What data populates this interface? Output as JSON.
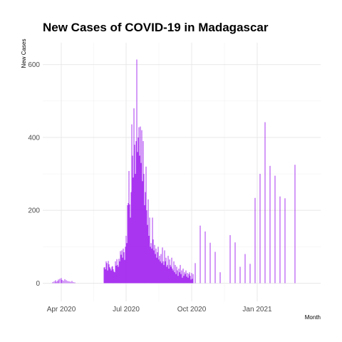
{
  "chart_data": {
    "type": "bar",
    "title": "New Cases of COVID-19 in Madagascar",
    "xlabel": "Month",
    "ylabel": "New Cases",
    "ylim": [
      -50,
      660
    ],
    "xlim": [
      "2020-03-06",
      "2021-03-31"
    ],
    "y_ticks": [
      0,
      200,
      400,
      600
    ],
    "x_ticks": [
      {
        "date": "2020-04-01",
        "label": "Apr 2020"
      },
      {
        "date": "2020-07-01",
        "label": "Jul 2020"
      },
      {
        "date": "2020-10-01",
        "label": "Oct 2020"
      },
      {
        "date": "2021-01-01",
        "label": "Jan 2021"
      }
    ],
    "grid": true,
    "legend": "none",
    "bar_color": "#a020f0",
    "points": [
      [
        "2020-03-20",
        3
      ],
      [
        "2020-03-22",
        5
      ],
      [
        "2020-03-24",
        8
      ],
      [
        "2020-03-25",
        4
      ],
      [
        "2020-03-27",
        6
      ],
      [
        "2020-03-28",
        10
      ],
      [
        "2020-03-30",
        12
      ],
      [
        "2020-04-01",
        14
      ],
      [
        "2020-04-02",
        9
      ],
      [
        "2020-04-04",
        7
      ],
      [
        "2020-04-06",
        11
      ],
      [
        "2020-04-08",
        8
      ],
      [
        "2020-04-10",
        6
      ],
      [
        "2020-04-12",
        5
      ],
      [
        "2020-04-14",
        4
      ],
      [
        "2020-04-16",
        6
      ],
      [
        "2020-04-18",
        3
      ],
      [
        "2020-04-20",
        2
      ],
      [
        "2020-05-31",
        43
      ],
      [
        "2020-06-01",
        44
      ],
      [
        "2020-06-02",
        38
      ],
      [
        "2020-06-03",
        60
      ],
      [
        "2020-06-04",
        55
      ],
      [
        "2020-06-05",
        35
      ],
      [
        "2020-06-06",
        61
      ],
      [
        "2020-06-07",
        52
      ],
      [
        "2020-06-08",
        44
      ],
      [
        "2020-06-09",
        40
      ],
      [
        "2020-06-10",
        35
      ],
      [
        "2020-06-11",
        45
      ],
      [
        "2020-06-12",
        47
      ],
      [
        "2020-06-13",
        38
      ],
      [
        "2020-06-14",
        32
      ],
      [
        "2020-06-15",
        30
      ],
      [
        "2020-06-16",
        60
      ],
      [
        "2020-06-17",
        48
      ],
      [
        "2020-06-18",
        66
      ],
      [
        "2020-06-19",
        50
      ],
      [
        "2020-06-20",
        45
      ],
      [
        "2020-06-21",
        67
      ],
      [
        "2020-06-22",
        60
      ],
      [
        "2020-06-23",
        88
      ],
      [
        "2020-06-24",
        78
      ],
      [
        "2020-06-25",
        90
      ],
      [
        "2020-06-26",
        70
      ],
      [
        "2020-06-27",
        95
      ],
      [
        "2020-06-28",
        85
      ],
      [
        "2020-06-29",
        64
      ],
      [
        "2020-06-30",
        100
      ],
      [
        "2020-07-01",
        130
      ],
      [
        "2020-07-02",
        110
      ],
      [
        "2020-07-03",
        214
      ],
      [
        "2020-07-04",
        220
      ],
      [
        "2020-07-05",
        308
      ],
      [
        "2020-07-06",
        216
      ],
      [
        "2020-07-07",
        180
      ],
      [
        "2020-07-08",
        250
      ],
      [
        "2020-07-09",
        436
      ],
      [
        "2020-07-10",
        350
      ],
      [
        "2020-07-11",
        290
      ],
      [
        "2020-07-12",
        480
      ],
      [
        "2020-07-13",
        380
      ],
      [
        "2020-07-14",
        300
      ],
      [
        "2020-07-15",
        390
      ],
      [
        "2020-07-16",
        614
      ],
      [
        "2020-07-17",
        360
      ],
      [
        "2020-07-18",
        400
      ],
      [
        "2020-07-19",
        428
      ],
      [
        "2020-07-20",
        350
      ],
      [
        "2020-07-21",
        430
      ],
      [
        "2020-07-22",
        330
      ],
      [
        "2020-07-23",
        420
      ],
      [
        "2020-07-24",
        280
      ],
      [
        "2020-07-25",
        390
      ],
      [
        "2020-07-26",
        300
      ],
      [
        "2020-07-27",
        214
      ],
      [
        "2020-07-28",
        250
      ],
      [
        "2020-07-29",
        320
      ],
      [
        "2020-07-30",
        200
      ],
      [
        "2020-07-31",
        160
      ],
      [
        "2020-08-01",
        230
      ],
      [
        "2020-08-02",
        130
      ],
      [
        "2020-08-03",
        180
      ],
      [
        "2020-08-04",
        100
      ],
      [
        "2020-08-05",
        110
      ],
      [
        "2020-08-06",
        95
      ],
      [
        "2020-08-07",
        180
      ],
      [
        "2020-08-08",
        120
      ],
      [
        "2020-08-09",
        90
      ],
      [
        "2020-08-10",
        105
      ],
      [
        "2020-08-11",
        80
      ],
      [
        "2020-08-12",
        95
      ],
      [
        "2020-08-13",
        70
      ],
      [
        "2020-08-14",
        85
      ],
      [
        "2020-08-15",
        100
      ],
      [
        "2020-08-16",
        65
      ],
      [
        "2020-08-17",
        75
      ],
      [
        "2020-08-18",
        60
      ],
      [
        "2020-08-19",
        80
      ],
      [
        "2020-08-20",
        55
      ],
      [
        "2020-08-21",
        98
      ],
      [
        "2020-08-22",
        60
      ],
      [
        "2020-08-23",
        50
      ],
      [
        "2020-08-24",
        90
      ],
      [
        "2020-08-25",
        60
      ],
      [
        "2020-08-26",
        70
      ],
      [
        "2020-08-27",
        45
      ],
      [
        "2020-08-28",
        50
      ],
      [
        "2020-08-29",
        75
      ],
      [
        "2020-08-30",
        40
      ],
      [
        "2020-08-31",
        65
      ],
      [
        "2020-09-01",
        50
      ],
      [
        "2020-09-02",
        45
      ],
      [
        "2020-09-03",
        70
      ],
      [
        "2020-09-04",
        40
      ],
      [
        "2020-09-05",
        35
      ],
      [
        "2020-09-06",
        60
      ],
      [
        "2020-09-07",
        30
      ],
      [
        "2020-09-08",
        50
      ],
      [
        "2020-09-09",
        25
      ],
      [
        "2020-09-10",
        45
      ],
      [
        "2020-09-11",
        35
      ],
      [
        "2020-09-12",
        20
      ],
      [
        "2020-09-13",
        40
      ],
      [
        "2020-09-14",
        30
      ],
      [
        "2020-09-15",
        50
      ],
      [
        "2020-09-16",
        25
      ],
      [
        "2020-09-17",
        35
      ],
      [
        "2020-09-18",
        15
      ],
      [
        "2020-09-19",
        40
      ],
      [
        "2020-09-20",
        20
      ],
      [
        "2020-09-21",
        30
      ],
      [
        "2020-09-22",
        25
      ],
      [
        "2020-09-23",
        35
      ],
      [
        "2020-09-24",
        18
      ],
      [
        "2020-09-25",
        28
      ],
      [
        "2020-09-26",
        15
      ],
      [
        "2020-09-27",
        25
      ],
      [
        "2020-09-28",
        30
      ],
      [
        "2020-09-29",
        20
      ],
      [
        "2020-09-30",
        10
      ],
      [
        "2020-10-01",
        28
      ],
      [
        "2020-10-02",
        12
      ],
      [
        "2020-10-03",
        25
      ],
      [
        "2020-10-06",
        55
      ],
      [
        "2020-10-13",
        158
      ],
      [
        "2020-10-20",
        142
      ],
      [
        "2020-10-27",
        111
      ],
      [
        "2020-11-03",
        86
      ],
      [
        "2020-11-10",
        30
      ],
      [
        "2020-11-24",
        132
      ],
      [
        "2020-12-01",
        112
      ],
      [
        "2020-12-08",
        45
      ],
      [
        "2020-12-15",
        80
      ],
      [
        "2020-12-22",
        53
      ],
      [
        "2020-12-29",
        234
      ],
      [
        "2021-01-05",
        300
      ],
      [
        "2021-01-12",
        442
      ],
      [
        "2021-01-19",
        322
      ],
      [
        "2021-01-26",
        295
      ],
      [
        "2021-02-02",
        238
      ],
      [
        "2021-02-09",
        233
      ],
      [
        "2021-02-23",
        325
      ]
    ]
  }
}
